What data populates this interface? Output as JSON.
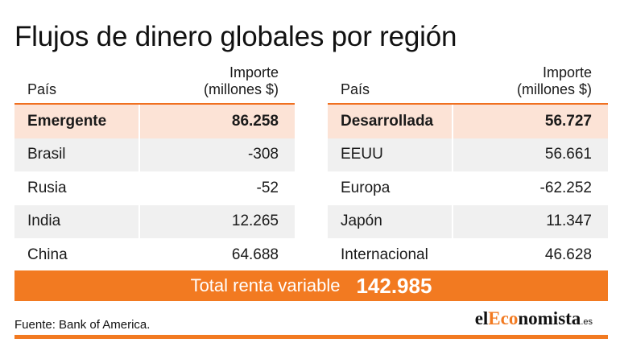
{
  "title": "Flujos de dinero globales por región",
  "headers": {
    "pais": "País",
    "importe_line1": "Importe",
    "importe_line2": "(millones $)"
  },
  "left_table": {
    "rows": [
      {
        "name": "Emergente",
        "value": "86.258"
      },
      {
        "name": "Brasil",
        "value": "-308"
      },
      {
        "name": "Rusia",
        "value": "-52"
      },
      {
        "name": "India",
        "value": "12.265"
      },
      {
        "name": "China",
        "value": "64.688"
      }
    ]
  },
  "right_table": {
    "rows": [
      {
        "name": "Desarrollada",
        "value": "56.727"
      },
      {
        "name": "EEUU",
        "value": "56.661"
      },
      {
        "name": "Europa",
        "value": "-62.252"
      },
      {
        "name": "Japón",
        "value": "11.347"
      },
      {
        "name": "Internacional",
        "value": "46.628"
      }
    ]
  },
  "total": {
    "label": "Total renta variable",
    "value": "142.985"
  },
  "source": "Fuente: Bank of America.",
  "logo": {
    "part1": "el",
    "part2": "Eco",
    "part3": "nomista",
    "suffix": ".es"
  },
  "colors": {
    "accent": "#f27a21",
    "highlight_row": "#fce3d6",
    "shaded_row": "#f0f0f0"
  }
}
